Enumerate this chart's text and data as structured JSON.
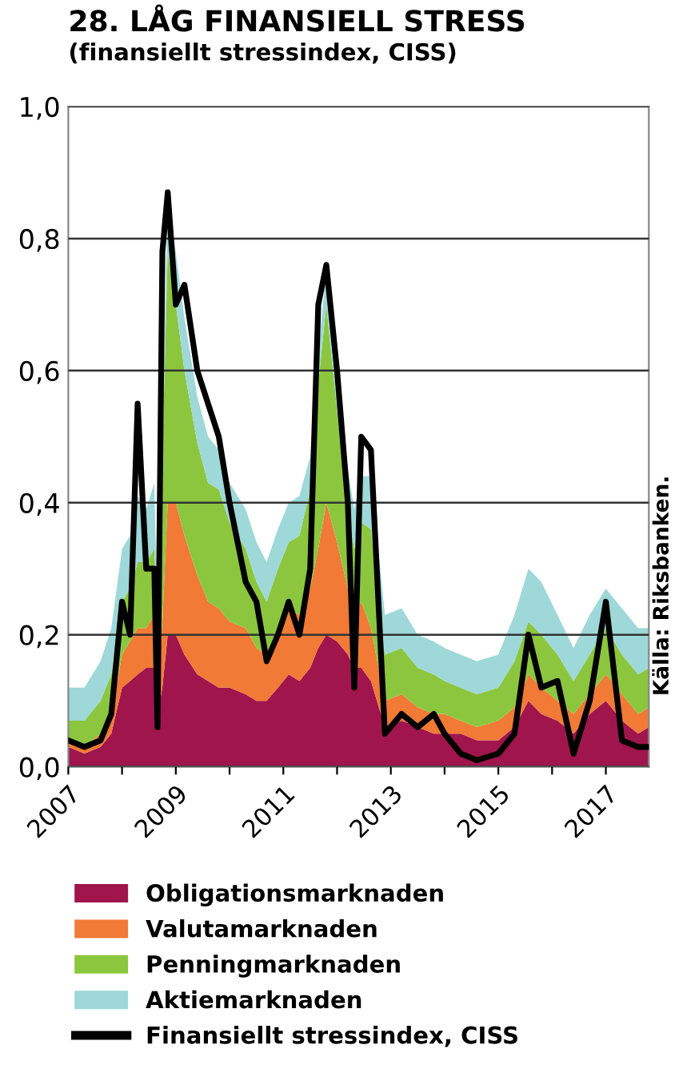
{
  "chart_data": {
    "type": "area",
    "stacked": true,
    "title": "28. LÅG FINANSIELL STRESS",
    "subtitle": "(finansiellt stressindex, CISS)",
    "annotations": [
      "Källa: Riksbanken."
    ],
    "x": [
      2007.0,
      2007.3,
      2007.6,
      2007.8,
      2008.0,
      2008.15,
      2008.29,
      2008.45,
      2008.6,
      2008.66,
      2008.75,
      2008.85,
      2009.0,
      2009.16,
      2009.4,
      2009.6,
      2009.8,
      2010.0,
      2010.3,
      2010.5,
      2010.69,
      2010.9,
      2011.1,
      2011.3,
      2011.5,
      2011.65,
      2011.8,
      2012.0,
      2012.2,
      2012.32,
      2012.45,
      2012.63,
      2012.89,
      2013.2,
      2013.5,
      2013.8,
      2014.0,
      2014.3,
      2014.6,
      2015.0,
      2015.3,
      2015.56,
      2015.8,
      2016.1,
      2016.4,
      2016.7,
      2017.0,
      2017.3,
      2017.6,
      2017.8
    ],
    "series": [
      {
        "name": "Obligationsmarknaden",
        "color": "#a0154c",
        "values": [
          0.03,
          0.02,
          0.03,
          0.05,
          0.12,
          0.13,
          0.14,
          0.15,
          0.15,
          0.08,
          0.12,
          0.2,
          0.2,
          0.17,
          0.14,
          0.13,
          0.12,
          0.12,
          0.11,
          0.1,
          0.1,
          0.12,
          0.14,
          0.13,
          0.15,
          0.18,
          0.2,
          0.19,
          0.17,
          0.15,
          0.15,
          0.13,
          0.06,
          0.07,
          0.06,
          0.05,
          0.05,
          0.05,
          0.04,
          0.04,
          0.06,
          0.1,
          0.08,
          0.07,
          0.05,
          0.08,
          0.1,
          0.07,
          0.05,
          0.06
        ]
      },
      {
        "name": "Valutamarknaden",
        "color": "#f07a36",
        "values": [
          0.01,
          0.01,
          0.02,
          0.03,
          0.05,
          0.06,
          0.07,
          0.06,
          0.08,
          0.04,
          0.1,
          0.2,
          0.2,
          0.18,
          0.15,
          0.12,
          0.12,
          0.1,
          0.1,
          0.08,
          0.07,
          0.08,
          0.1,
          0.1,
          0.12,
          0.15,
          0.2,
          0.15,
          0.1,
          0.08,
          0.1,
          0.08,
          0.04,
          0.04,
          0.03,
          0.03,
          0.03,
          0.02,
          0.02,
          0.03,
          0.03,
          0.04,
          0.04,
          0.03,
          0.03,
          0.03,
          0.04,
          0.04,
          0.03,
          0.03
        ]
      },
      {
        "name": "Penningmarknaden",
        "color": "#8cc63f",
        "values": [
          0.03,
          0.04,
          0.05,
          0.06,
          0.08,
          0.08,
          0.1,
          0.1,
          0.1,
          0.05,
          0.25,
          0.38,
          0.3,
          0.25,
          0.2,
          0.18,
          0.18,
          0.15,
          0.12,
          0.1,
          0.08,
          0.1,
          0.1,
          0.12,
          0.15,
          0.25,
          0.3,
          0.2,
          0.12,
          0.1,
          0.12,
          0.15,
          0.07,
          0.07,
          0.06,
          0.06,
          0.05,
          0.05,
          0.05,
          0.05,
          0.07,
          0.08,
          0.08,
          0.07,
          0.05,
          0.06,
          0.07,
          0.06,
          0.06,
          0.06
        ]
      },
      {
        "name": "Aktiemarknaden",
        "color": "#9ed8d8",
        "values": [
          0.05,
          0.05,
          0.06,
          0.07,
          0.08,
          0.08,
          0.1,
          0.08,
          0.1,
          0.05,
          0.05,
          0.08,
          0.08,
          0.08,
          0.07,
          0.07,
          0.06,
          0.06,
          0.06,
          0.06,
          0.06,
          0.06,
          0.06,
          0.06,
          0.05,
          0.05,
          0.05,
          0.06,
          0.06,
          0.06,
          0.07,
          0.08,
          0.06,
          0.06,
          0.05,
          0.05,
          0.05,
          0.05,
          0.05,
          0.05,
          0.07,
          0.08,
          0.08,
          0.06,
          0.05,
          0.06,
          0.06,
          0.07,
          0.07,
          0.06
        ]
      },
      {
        "name": "Finansiellt stressindex, CISS",
        "type": "line",
        "color": "#000000",
        "values": [
          0.04,
          0.03,
          0.04,
          0.08,
          0.25,
          0.2,
          0.55,
          0.3,
          0.3,
          0.06,
          0.78,
          0.87,
          0.7,
          0.73,
          0.6,
          0.55,
          0.5,
          0.4,
          0.28,
          0.25,
          0.16,
          0.2,
          0.25,
          0.2,
          0.3,
          0.7,
          0.76,
          0.6,
          0.4,
          0.12,
          0.5,
          0.48,
          0.05,
          0.08,
          0.06,
          0.08,
          0.05,
          0.02,
          0.01,
          0.02,
          0.05,
          0.2,
          0.12,
          0.13,
          0.02,
          0.1,
          0.25,
          0.04,
          0.03,
          0.03
        ]
      }
    ],
    "xlim": [
      2007,
      2017.8
    ],
    "xticks": [
      2007,
      {
        "value": 2008,
        "label": null
      },
      2009,
      {
        "value": 2010,
        "label": null
      },
      2011,
      {
        "value": 2012,
        "label": null
      },
      2013,
      {
        "value": 2014,
        "label": null
      },
      2015,
      {
        "value": 2016,
        "label": null
      },
      2017
    ],
    "ylim": [
      0,
      1.0
    ],
    "yticks": [
      {
        "value": 0,
        "label": "0,0"
      },
      {
        "value": 0.2,
        "label": "0,2"
      },
      {
        "value": 0.4,
        "label": "0,4"
      },
      {
        "value": 0.6,
        "label": "0,6"
      },
      {
        "value": 0.8,
        "label": "0,8"
      },
      {
        "value": 1.0,
        "label": "1,0"
      }
    ],
    "grid": "y",
    "legend": "bottom"
  }
}
